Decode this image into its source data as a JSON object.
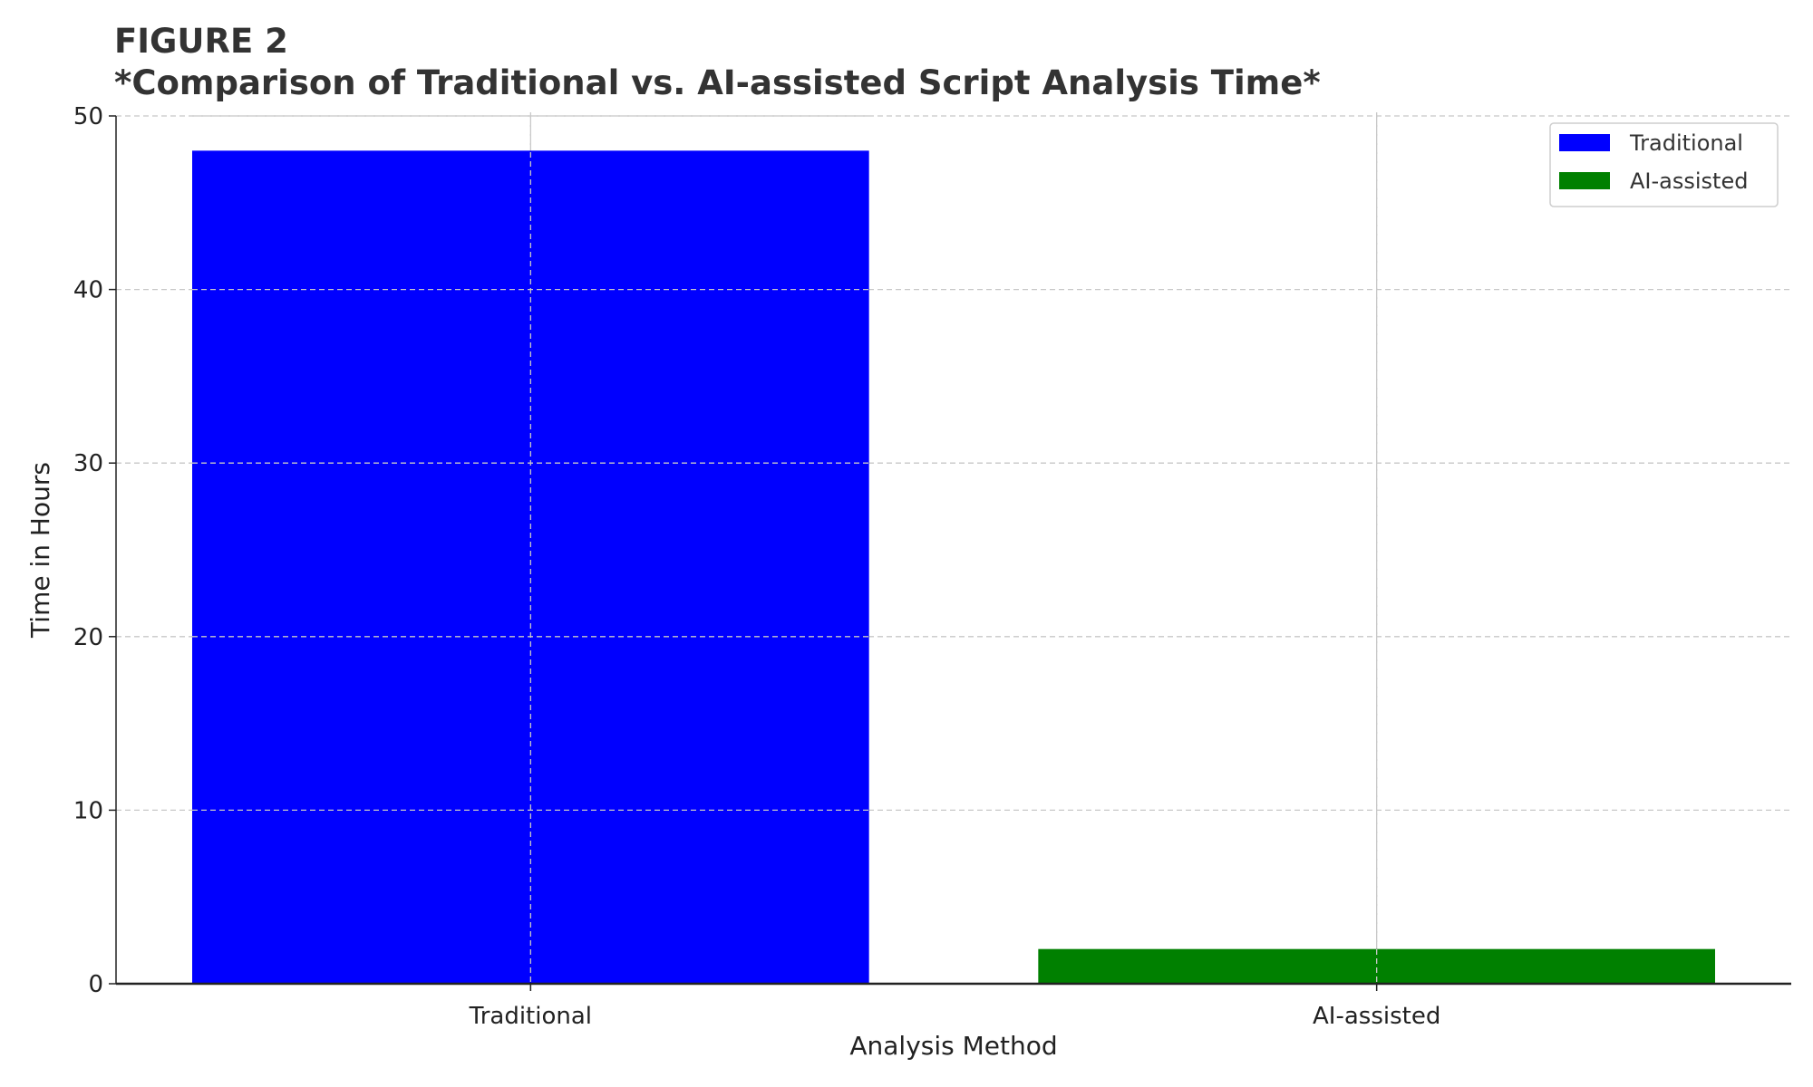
{
  "chart_data": {
    "type": "bar",
    "title": "FIGURE 2",
    "subtitle": "*Comparison of Traditional vs. AI-assisted Script Analysis Time*",
    "xlabel": "Analysis Method",
    "ylabel": "Time in Hours",
    "categories": [
      "Traditional",
      "AI-assisted"
    ],
    "values": [
      48,
      2
    ],
    "colors": [
      "#0000ff",
      "#008000"
    ],
    "ylim": [
      0,
      50
    ],
    "xlim": [
      -0.49,
      1.49
    ],
    "yticks": [
      0,
      10,
      20,
      30,
      40,
      50
    ],
    "grid": true,
    "legend": {
      "placement": "top-right",
      "entries": [
        "Traditional",
        "AI-assisted"
      ]
    }
  }
}
